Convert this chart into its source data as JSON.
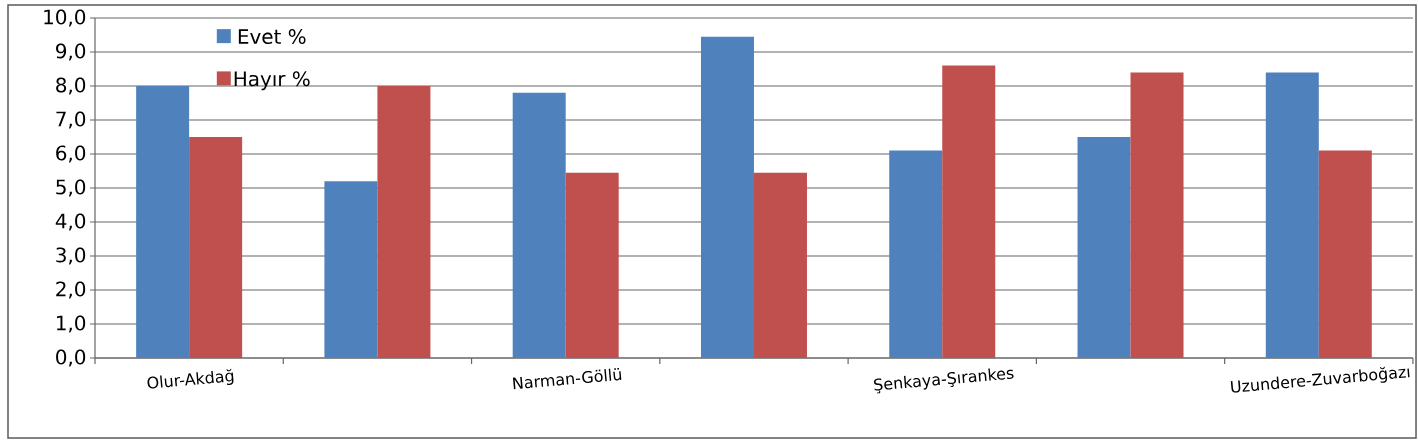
{
  "chart_data": {
    "type": "bar",
    "categories": [
      "Olur-Akdağ",
      null,
      "Narman-Göllü",
      null,
      "Şenkaya-Şırankes",
      null,
      "Uzundere-Zuvarboğazı"
    ],
    "series": [
      {
        "name": "Evet %",
        "color": "#4f81bd",
        "values": [
          8.0,
          5.2,
          7.8,
          9.45,
          6.1,
          6.5,
          8.4
        ]
      },
      {
        "name": "Hayır %",
        "color": "#c0504d",
        "values": [
          6.5,
          8.0,
          5.45,
          5.45,
          8.6,
          8.4,
          6.1
        ]
      }
    ],
    "ylim": [
      0,
      10
    ],
    "yticks": [
      {
        "value": 0,
        "label": "0,0"
      },
      {
        "value": 1,
        "label": "1,0"
      },
      {
        "value": 2,
        "label": "2,0"
      },
      {
        "value": 3,
        "label": "3,0"
      },
      {
        "value": 4,
        "label": "4,0"
      },
      {
        "value": 5,
        "label": "5,0"
      },
      {
        "value": 6,
        "label": "6,0"
      },
      {
        "value": 7,
        "label": "7,0"
      },
      {
        "value": 8,
        "label": "8,0"
      },
      {
        "value": 9,
        "label": "9,0"
      },
      {
        "value": 10,
        "label": "10,0"
      }
    ],
    "grid": "y",
    "legend": "top left"
  }
}
